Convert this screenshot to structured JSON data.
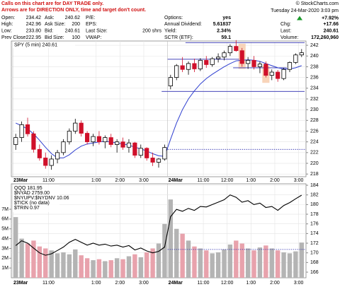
{
  "header": {
    "note": [
      "Calls on this chart are for DAY TRADE only.",
      "Arrows are for DIRECTION ONLY, time and target don't count."
    ],
    "copyright": "© StockCharts.com",
    "date": "Tuesday  24-Mar-2020  3:03 pm",
    "change_pct": "+7.92%",
    "columns": [
      [
        {
          "label": "Open:",
          "value": "234.42"
        },
        {
          "label": "High:",
          "value": "242.96"
        },
        {
          "label": "Low:",
          "value": "233.80"
        },
        {
          "label": "Prev Close:",
          "value": "222.95"
        }
      ],
      [
        {
          "label": "Ask:",
          "value": "240.62"
        },
        {
          "label": "Ask Size:",
          "value": "200"
        },
        {
          "label": "Bid:",
          "value": "240.61"
        },
        {
          "label": "Bid Size:",
          "value": "100"
        }
      ],
      [
        {
          "label": "P/E:"
        },
        {
          "label": "EPS:"
        },
        {
          "label": "Last Size:",
          "value": "200 shrs"
        },
        {
          "label": "VWAP:"
        }
      ],
      [
        {
          "label": "Options:",
          "value": "yes"
        },
        {
          "label": "Annual Dividend:",
          "value": "5.61837"
        },
        {
          "label": "Yield:",
          "value": "2.34%"
        },
        {
          "label": "SCTR (ETF):",
          "value": "59.1"
        }
      ],
      [
        {
          "label": "Chg:",
          "value": "+17.66"
        },
        {
          "label": "Last:",
          "value": "240.61"
        },
        {
          "label": "Volume:",
          "value": "172,260,960"
        }
      ]
    ]
  },
  "chart_data": [
    {
      "type": "candlestick",
      "title": "SPY (5 min) 240.61",
      "categories": [
        "23Mar",
        null,
        null,
        null,
        null,
        null,
        "11:00",
        null,
        null,
        null,
        null,
        null,
        null,
        null,
        "1:00",
        null,
        null,
        null,
        "2:00",
        null,
        null,
        null,
        "3:00",
        null,
        null,
        null,
        "24Mar",
        null,
        null,
        null,
        null,
        null,
        "11:00",
        null,
        null,
        null,
        "12:00",
        null,
        null,
        null,
        "1:00",
        null,
        null,
        null,
        "2:00",
        null,
        null,
        null,
        "3:00"
      ],
      "open": [
        223.5,
        224.8,
        227.2,
        225.5,
        222.6,
        221.0,
        219.6,
        220.8,
        222.0,
        224.0,
        226.0,
        227.5,
        225.6,
        224.0,
        225.0,
        224.0,
        224.8,
        223.5,
        224.0,
        223.0,
        223.8,
        221.5,
        222.8,
        221.0,
        220.2,
        220.8,
        234.42,
        236.0,
        238.2,
        237.5,
        238.6,
        237.6,
        239.2,
        238.4,
        239.5,
        239.8,
        240.6,
        241.8,
        241.0,
        238.6,
        239.2,
        238.0,
        238.5,
        236.4,
        237.0,
        235.8,
        237.5,
        238.8,
        240.2
      ],
      "high": [
        225.5,
        227.8,
        228.5,
        226.0,
        223.5,
        222.0,
        221.5,
        222.5,
        224.5,
        226.5,
        228.3,
        228.0,
        226.0,
        225.5,
        226.0,
        225.2,
        225.5,
        224.5,
        224.8,
        224.5,
        224.0,
        223.5,
        223.0,
        222.0,
        221.0,
        223.5,
        236.5,
        238.5,
        239.8,
        239.0,
        239.5,
        239.6,
        240.0,
        239.8,
        240.5,
        241.0,
        242.2,
        242.96,
        241.5,
        239.8,
        240.0,
        239.0,
        239.0,
        237.5,
        237.4,
        237.8,
        239.0,
        240.5,
        241.3
      ],
      "low": [
        222.5,
        224.0,
        225.0,
        222.0,
        220.5,
        219.0,
        218.8,
        220.0,
        221.5,
        223.5,
        225.5,
        225.0,
        223.5,
        223.2,
        223.5,
        222.8,
        223.0,
        222.0,
        222.5,
        222.0,
        221.0,
        221.0,
        220.5,
        219.5,
        219.2,
        220.5,
        233.8,
        235.5,
        237.0,
        236.5,
        237.0,
        237.2,
        237.8,
        238.0,
        238.8,
        239.2,
        240.0,
        240.8,
        238.0,
        237.6,
        237.5,
        236.8,
        236.0,
        235.5,
        235.2,
        235.5,
        237.0,
        238.5,
        239.8
      ],
      "close": [
        224.8,
        227.2,
        225.5,
        222.6,
        221.0,
        219.6,
        220.8,
        222.0,
        224.0,
        226.0,
        227.5,
        225.6,
        224.0,
        225.0,
        224.0,
        224.8,
        223.5,
        224.0,
        223.0,
        223.8,
        221.5,
        222.8,
        221.0,
        220.2,
        220.8,
        222.95,
        236.0,
        238.2,
        237.5,
        238.6,
        237.6,
        239.2,
        238.4,
        239.5,
        239.8,
        240.6,
        241.8,
        241.0,
        238.6,
        239.2,
        238.0,
        238.5,
        236.4,
        237.0,
        235.8,
        237.5,
        238.8,
        240.2,
        240.61
      ],
      "moving_average": {
        "color": "#2f3fd0",
        "values": [
          227.5,
          227.0,
          226.4,
          225.5,
          224.3,
          223.0,
          221.8,
          221.0,
          221.0,
          221.6,
          222.5,
          223.2,
          223.6,
          223.8,
          224.0,
          224.1,
          224.0,
          223.8,
          223.6,
          223.4,
          223.0,
          222.7,
          222.3,
          221.8,
          221.4,
          221.3,
          224.5,
          227.5,
          230.0,
          232.0,
          233.5,
          234.8,
          235.8,
          236.6,
          237.3,
          238.0,
          238.6,
          239.1,
          239.2,
          239.3,
          239.2,
          239.0,
          238.6,
          238.2,
          237.8,
          237.6,
          237.6,
          237.8,
          238.2
        ]
      },
      "up_color": "#000000",
      "down_color": "#d0102a",
      "ylim": [
        217.5,
        242.8
      ],
      "yticks": [
        218,
        220,
        222,
        224,
        226,
        228,
        230,
        232,
        234,
        236,
        238,
        240,
        242
      ],
      "levels": [
        {
          "value": 242.5,
          "from": 29,
          "to": 48
        },
        {
          "value": 239.4,
          "from": 26,
          "to": 37
        },
        {
          "value": 237.8,
          "from": 37,
          "to": 45
        },
        {
          "value": 233.4,
          "from": 25,
          "to": 48
        }
      ],
      "dotted_level": {
        "value": 222.6,
        "from": 26
      },
      "highlights": [
        {
          "index": 38,
          "top": 242.3,
          "bottom": 237.6
        },
        {
          "index": 42,
          "top": 238.2,
          "bottom": 235.0
        }
      ],
      "grid": true
    },
    {
      "type": "volume-line",
      "legend": [
        "QQQ 181.95",
        "$NYAD 2759.00",
        "$NYUPV:$NYDNV 10.06",
        "$TICK (no data)",
        "$TRIN 0.97"
      ],
      "volume": [
        6200000,
        4000000,
        3500000,
        3800000,
        3200000,
        3000000,
        2800000,
        2500000,
        2600000,
        2400000,
        2900000,
        2300000,
        2000000,
        1800000,
        1900000,
        1700000,
        1800000,
        2000000,
        1900000,
        2200000,
        2400000,
        2100000,
        2600000,
        3000000,
        3500000,
        5500000,
        8000000,
        5000000,
        4500000,
        3800000,
        3200000,
        3000000,
        2800000,
        2500000,
        2600000,
        2900000,
        3400000,
        3800000,
        3500000,
        3000000,
        2800000,
        3100000,
        3300000,
        3000000,
        2800000,
        2600000,
        2500000,
        2700000,
        3600000
      ],
      "line": {
        "color": "#000000",
        "values": [
          171.5,
          172.5,
          172.0,
          171.0,
          170.0,
          169.5,
          169.8,
          170.5,
          171.2,
          172.2,
          172.8,
          172.2,
          171.6,
          172.0,
          171.6,
          171.8,
          171.4,
          171.6,
          171.2,
          171.5,
          170.6,
          171.0,
          170.4,
          170.0,
          170.3,
          171.2,
          177.5,
          179.0,
          178.6,
          179.2,
          178.8,
          179.6,
          179.5,
          180.0,
          180.5,
          181.0,
          182.0,
          181.5,
          180.5,
          180.8,
          180.0,
          180.3,
          179.4,
          179.6,
          178.8,
          179.8,
          180.4,
          181.2,
          181.95
        ]
      },
      "up_volume_color": "#b4b4b4",
      "down_volume_color": "#e8a2ac",
      "ylim": [
        0,
        9600000
      ],
      "yticks": [
        {
          "value": 1000000,
          "label": "1M"
        },
        {
          "value": 2000000,
          "label": "2M"
        },
        {
          "value": 3000000,
          "label": "3M"
        },
        {
          "value": 4000000,
          "label": "4M"
        },
        {
          "value": 5000000,
          "label": "5M"
        },
        {
          "value": 6000000,
          "label": "6M"
        },
        {
          "value": 7000000,
          "label": "7M"
        }
      ],
      "y2lim": [
        164.83,
        184.3
      ],
      "y2ticks": [
        166,
        168,
        170,
        172,
        174,
        176,
        178,
        180,
        182,
        184
      ],
      "dotted_level": {
        "value": 170.7,
        "from": 26
      }
    }
  ]
}
